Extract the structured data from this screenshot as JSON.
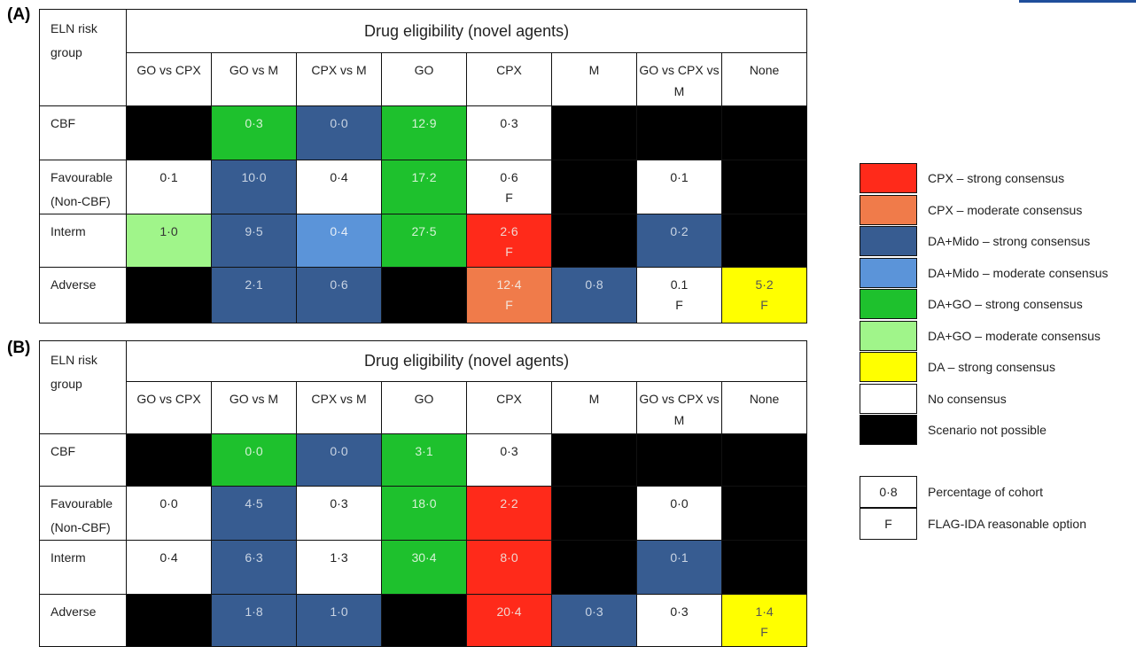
{
  "panel_a": {
    "label": "(A)",
    "title": "Drug eligibility (novel agents)",
    "risk_header": "ELN risk group",
    "columns": [
      "GO vs CPX",
      "GO vs M",
      "CPX vs M",
      "GO",
      "CPX",
      "M",
      "GO vs CPX vs M",
      "None"
    ],
    "rows": [
      {
        "label": "CBF",
        "cells": [
          {
            "v": "",
            "f": "",
            "c": "black"
          },
          {
            "v": "0·3",
            "f": "",
            "c": "dags"
          },
          {
            "v": "0·0",
            "f": "",
            "c": "dams"
          },
          {
            "v": "12·9",
            "f": "",
            "c": "dags"
          },
          {
            "v": "0·3",
            "f": "",
            "c": "none"
          },
          {
            "v": "",
            "f": "",
            "c": "black"
          },
          {
            "v": "",
            "f": "",
            "c": "black"
          },
          {
            "v": "",
            "f": "",
            "c": "black"
          }
        ]
      },
      {
        "label": "Favourable (Non-CBF)",
        "cells": [
          {
            "v": "0·1",
            "f": "",
            "c": "none"
          },
          {
            "v": "10·0",
            "f": "",
            "c": "dams"
          },
          {
            "v": "0·4",
            "f": "",
            "c": "none"
          },
          {
            "v": "17·2",
            "f": "",
            "c": "dags"
          },
          {
            "v": "0·6",
            "f": "F",
            "c": "none"
          },
          {
            "v": "",
            "f": "",
            "c": "black"
          },
          {
            "v": "0·1",
            "f": "",
            "c": "none"
          },
          {
            "v": "",
            "f": "",
            "c": "black"
          }
        ]
      },
      {
        "label": "Interm",
        "cells": [
          {
            "v": "1·0",
            "f": "",
            "c": "dagm"
          },
          {
            "v": "9·5",
            "f": "",
            "c": "dams"
          },
          {
            "v": "0·4",
            "f": "",
            "c": "damm"
          },
          {
            "v": "27·5",
            "f": "",
            "c": "dags"
          },
          {
            "v": "2·6",
            "f": "F",
            "c": "cpxs"
          },
          {
            "v": "",
            "f": "",
            "c": "black"
          },
          {
            "v": "0·2",
            "f": "",
            "c": "dams"
          },
          {
            "v": "",
            "f": "",
            "c": "black"
          }
        ]
      },
      {
        "label": "Adverse",
        "cells": [
          {
            "v": "",
            "f": "",
            "c": "black"
          },
          {
            "v": "2·1",
            "f": "",
            "c": "dams"
          },
          {
            "v": "0·6",
            "f": "",
            "c": "dams"
          },
          {
            "v": "",
            "f": "",
            "c": "black"
          },
          {
            "v": "12·4",
            "f": "F",
            "c": "cpxm"
          },
          {
            "v": "0·8",
            "f": "",
            "c": "dams"
          },
          {
            "v": "0.1",
            "f": "F",
            "c": "none"
          },
          {
            "v": "5·2",
            "f": "F",
            "c": "das"
          }
        ]
      }
    ]
  },
  "panel_b": {
    "label": "(B)",
    "title": "Drug eligibility (novel agents)",
    "risk_header": "ELN risk group",
    "columns": [
      "GO vs CPX",
      "GO vs M",
      "CPX vs M",
      "GO",
      "CPX",
      "M",
      "GO vs CPX vs M",
      "None"
    ],
    "rows": [
      {
        "label": "CBF",
        "cells": [
          {
            "v": "",
            "f": "",
            "c": "black"
          },
          {
            "v": "0·0",
            "f": "",
            "c": "dags"
          },
          {
            "v": "0·0",
            "f": "",
            "c": "dams"
          },
          {
            "v": "3·1",
            "f": "",
            "c": "dags"
          },
          {
            "v": "0·3",
            "f": "",
            "c": "none"
          },
          {
            "v": "",
            "f": "",
            "c": "black"
          },
          {
            "v": "",
            "f": "",
            "c": "black"
          },
          {
            "v": "",
            "f": "",
            "c": "black"
          }
        ]
      },
      {
        "label": "Favourable (Non-CBF)",
        "cells": [
          {
            "v": "0·0",
            "f": "",
            "c": "none"
          },
          {
            "v": "4·5",
            "f": "",
            "c": "dams"
          },
          {
            "v": "0·3",
            "f": "",
            "c": "none"
          },
          {
            "v": "18·0",
            "f": "",
            "c": "dags"
          },
          {
            "v": "2·2",
            "f": "",
            "c": "cpxs"
          },
          {
            "v": "",
            "f": "",
            "c": "black"
          },
          {
            "v": "0·0",
            "f": "",
            "c": "none"
          },
          {
            "v": "",
            "f": "",
            "c": "black"
          }
        ]
      },
      {
        "label": "Interm",
        "cells": [
          {
            "v": "0·4",
            "f": "",
            "c": "none"
          },
          {
            "v": "6·3",
            "f": "",
            "c": "dams"
          },
          {
            "v": "1·3",
            "f": "",
            "c": "none"
          },
          {
            "v": "30·4",
            "f": "",
            "c": "dags"
          },
          {
            "v": "8·0",
            "f": "",
            "c": "cpxs"
          },
          {
            "v": "",
            "f": "",
            "c": "black"
          },
          {
            "v": "0·1",
            "f": "",
            "c": "dams"
          },
          {
            "v": "",
            "f": "",
            "c": "black"
          }
        ]
      },
      {
        "label": "Adverse",
        "cells": [
          {
            "v": "",
            "f": "",
            "c": "black"
          },
          {
            "v": "1·8",
            "f": "",
            "c": "dams"
          },
          {
            "v": "1·0",
            "f": "",
            "c": "dams"
          },
          {
            "v": "",
            "f": "",
            "c": "black"
          },
          {
            "v": "20·4",
            "f": "",
            "c": "cpxs"
          },
          {
            "v": "0·3",
            "f": "",
            "c": "dams"
          },
          {
            "v": "0·3",
            "f": "",
            "c": "none"
          },
          {
            "v": "1·4",
            "f": "F",
            "c": "das"
          }
        ]
      }
    ]
  },
  "legend": [
    {
      "key": "cpxs",
      "label": "CPX – strong consensus",
      "color": "#ff2a1a"
    },
    {
      "key": "cpxm",
      "label": "CPX – moderate consensus",
      "color": "#f07b4a"
    },
    {
      "key": "dams",
      "label": "DA+Mido – strong consensus",
      "color": "#375c91"
    },
    {
      "key": "damm",
      "label": "DA+Mido – moderate consensus",
      "color": "#5b94d9"
    },
    {
      "key": "dags",
      "label": "DA+GO – strong consensus",
      "color": "#1ec12d"
    },
    {
      "key": "dagm",
      "label": "DA+GO – moderate consensus",
      "color": "#a0f58a"
    },
    {
      "key": "das",
      "label": "DA – strong consensus",
      "color": "#ffff00"
    },
    {
      "key": "none",
      "label": "No consensus",
      "color": "#ffffff"
    },
    {
      "key": "black",
      "label": "Scenario not possible",
      "color": "#000000"
    }
  ],
  "key": [
    {
      "box": "0·8",
      "label": "Percentage of cohort"
    },
    {
      "box": "F",
      "label": "FLAG-IDA reasonable option"
    }
  ]
}
